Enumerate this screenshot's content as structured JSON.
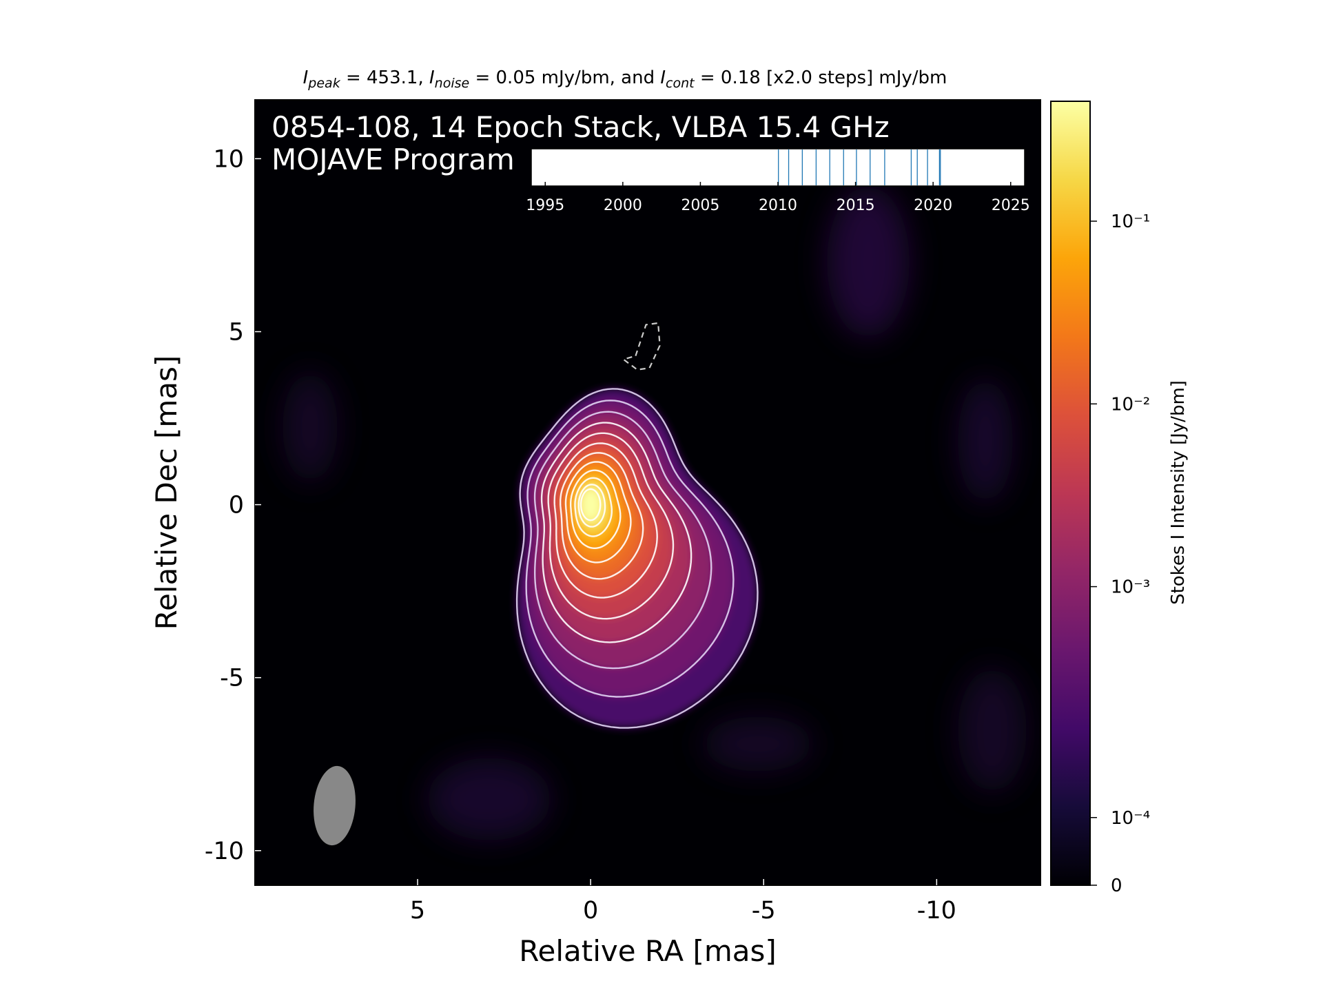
{
  "chart_data": {
    "type": "image",
    "title_segments": [
      {
        "text": "I",
        "italic": true
      },
      {
        "text": "peak",
        "italic": true,
        "sub": true
      },
      {
        "text": " = 453.1, "
      },
      {
        "text": "I",
        "italic": true
      },
      {
        "text": "noise",
        "italic": true,
        "sub": true
      },
      {
        "text": " = 0.05 mJy/bm, and "
      },
      {
        "text": "I",
        "italic": true
      },
      {
        "text": "cont",
        "italic": true,
        "sub": true
      },
      {
        "text": " = 0.18 [x2.0 steps] mJy/bm"
      }
    ],
    "annotations": [
      "0854-108, 14 Epoch Stack, VLBA 15.4 GHz",
      "MOJAVE Program"
    ],
    "xlabel": "Relative RA [mas]",
    "ylabel": "Relative Dec [mas]",
    "xlim": [
      9.7,
      -13.0
    ],
    "ylim": [
      -11.0,
      11.7
    ],
    "xticks": [
      5,
      0,
      -5,
      -10
    ],
    "yticks": [
      10,
      5,
      0,
      -5,
      -10
    ],
    "contour_levels": [
      0.00018,
      0.00036,
      0.00072,
      0.00144,
      0.00288,
      0.00576,
      0.01152,
      0.02304,
      0.04608,
      0.09216,
      0.18432,
      0.36864
    ],
    "negative_contour_levels": [
      -0.00018
    ],
    "beam": {
      "x": 7.4,
      "y": -8.7,
      "major": 2.3,
      "minor": 1.2,
      "pa": -5
    },
    "colormap": "inferno",
    "colorbar": {
      "label": "Stokes I Intensity [Jy/bm]",
      "scale": "symlog",
      "linthresh": 0.0003,
      "lim": [
        0,
        0.4531
      ],
      "ticks": [
        0,
        {
          "value": 0.0001,
          "label": "10⁻⁴"
        },
        {
          "value": 0.001,
          "label": "10⁻³"
        },
        {
          "value": 0.01,
          "label": "10⁻²"
        },
        {
          "value": 0.1,
          "label": "10⁻¹"
        }
      ]
    },
    "timeline": {
      "xlim": [
        1994.1,
        2025.9
      ],
      "xticks": [
        1995,
        2000,
        2005,
        2010,
        2015,
        2020,
        2025
      ],
      "epochs": [
        2010.03,
        2010.69,
        2011.57,
        2012.46,
        2013.34,
        2014.23,
        2015.06,
        2015.94,
        2016.88,
        2018.59,
        2018.98,
        2019.64,
        2020.41,
        2020.47
      ],
      "color": "#1f77b4"
    }
  }
}
